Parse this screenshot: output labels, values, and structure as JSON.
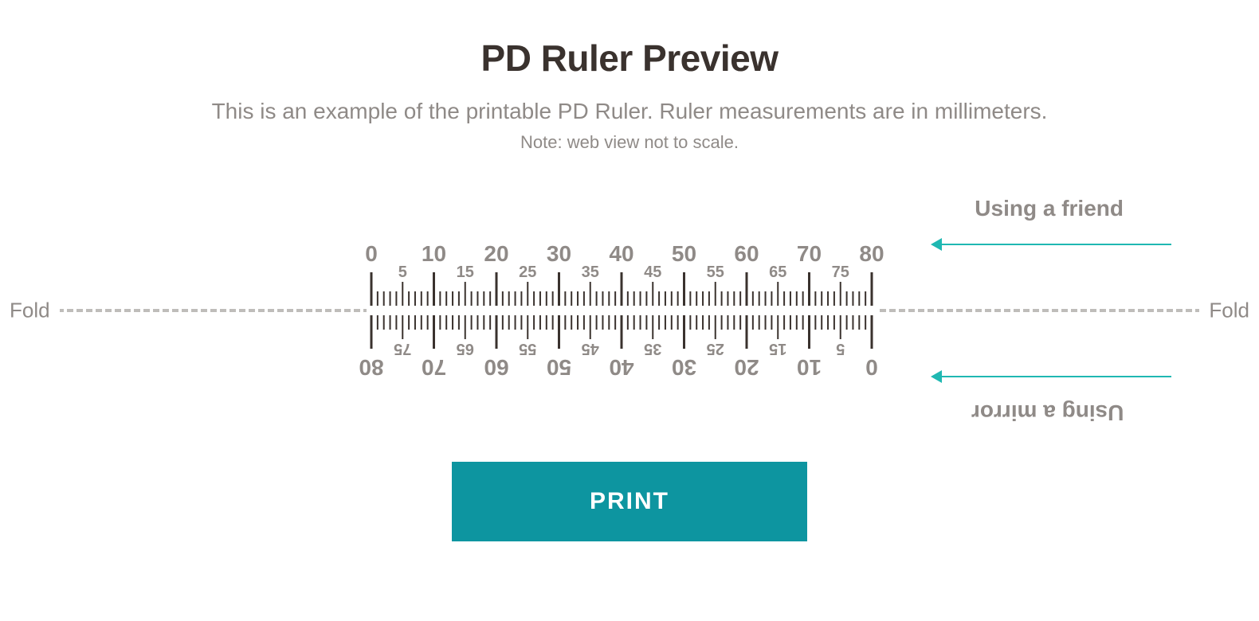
{
  "title": "PD Ruler Preview",
  "subtitle": "This is an example of the printable PD Ruler. Ruler measurements are in millimeters.",
  "note": "Note: web view not to scale.",
  "fold_label": "Fold",
  "side_labels": {
    "friend": "Using a friend",
    "mirror": "Using a mirror"
  },
  "print_label": "PRINT",
  "ruler": {
    "min": 0,
    "max": 80,
    "major_step": 10,
    "mid_step": 5,
    "minor_step": 1,
    "major_tick_len": 42,
    "mid_tick_len": 30,
    "minor_tick_len": 18,
    "tick_color": "#3a322e",
    "major_label_color": "#8f8a87",
    "mid_label_color": "#8f8a87",
    "major_label_fontsize": 28,
    "mid_label_fontsize": 20,
    "major_labels": [
      "0",
      "10",
      "20",
      "30",
      "40",
      "50",
      "60",
      "70",
      "80"
    ],
    "mid_labels": [
      "5",
      "15",
      "25",
      "35",
      "45",
      "55",
      "65",
      "75"
    ]
  },
  "colors": {
    "bg": "#ffffff",
    "title": "#3a322e",
    "text_muted": "#8f8a87",
    "dash": "#bfbdba",
    "arrow": "#1fb8b2",
    "button_bg": "#0d95a0",
    "button_fg": "#ffffff"
  }
}
